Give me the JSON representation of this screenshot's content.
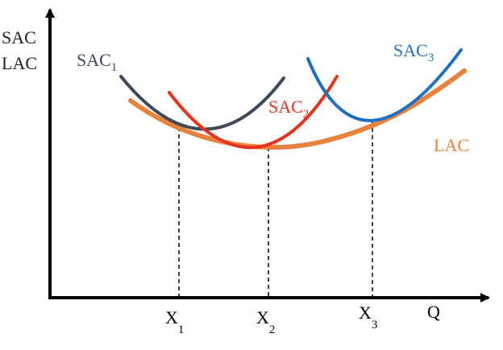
{
  "axes": {
    "y_label": [
      "SAC",
      "LAC"
    ],
    "x_label": "Q"
  },
  "curves": [
    {
      "name": "SAC",
      "sub": "1"
    },
    {
      "name": "SAC",
      "sub": "2"
    },
    {
      "name": "SAC",
      "sub": "3"
    },
    {
      "name": "LAC"
    }
  ],
  "points": [
    {
      "name": "X",
      "sub": "1"
    },
    {
      "name": "X",
      "sub": "2"
    },
    {
      "name": "X",
      "sub": "3"
    }
  ]
}
